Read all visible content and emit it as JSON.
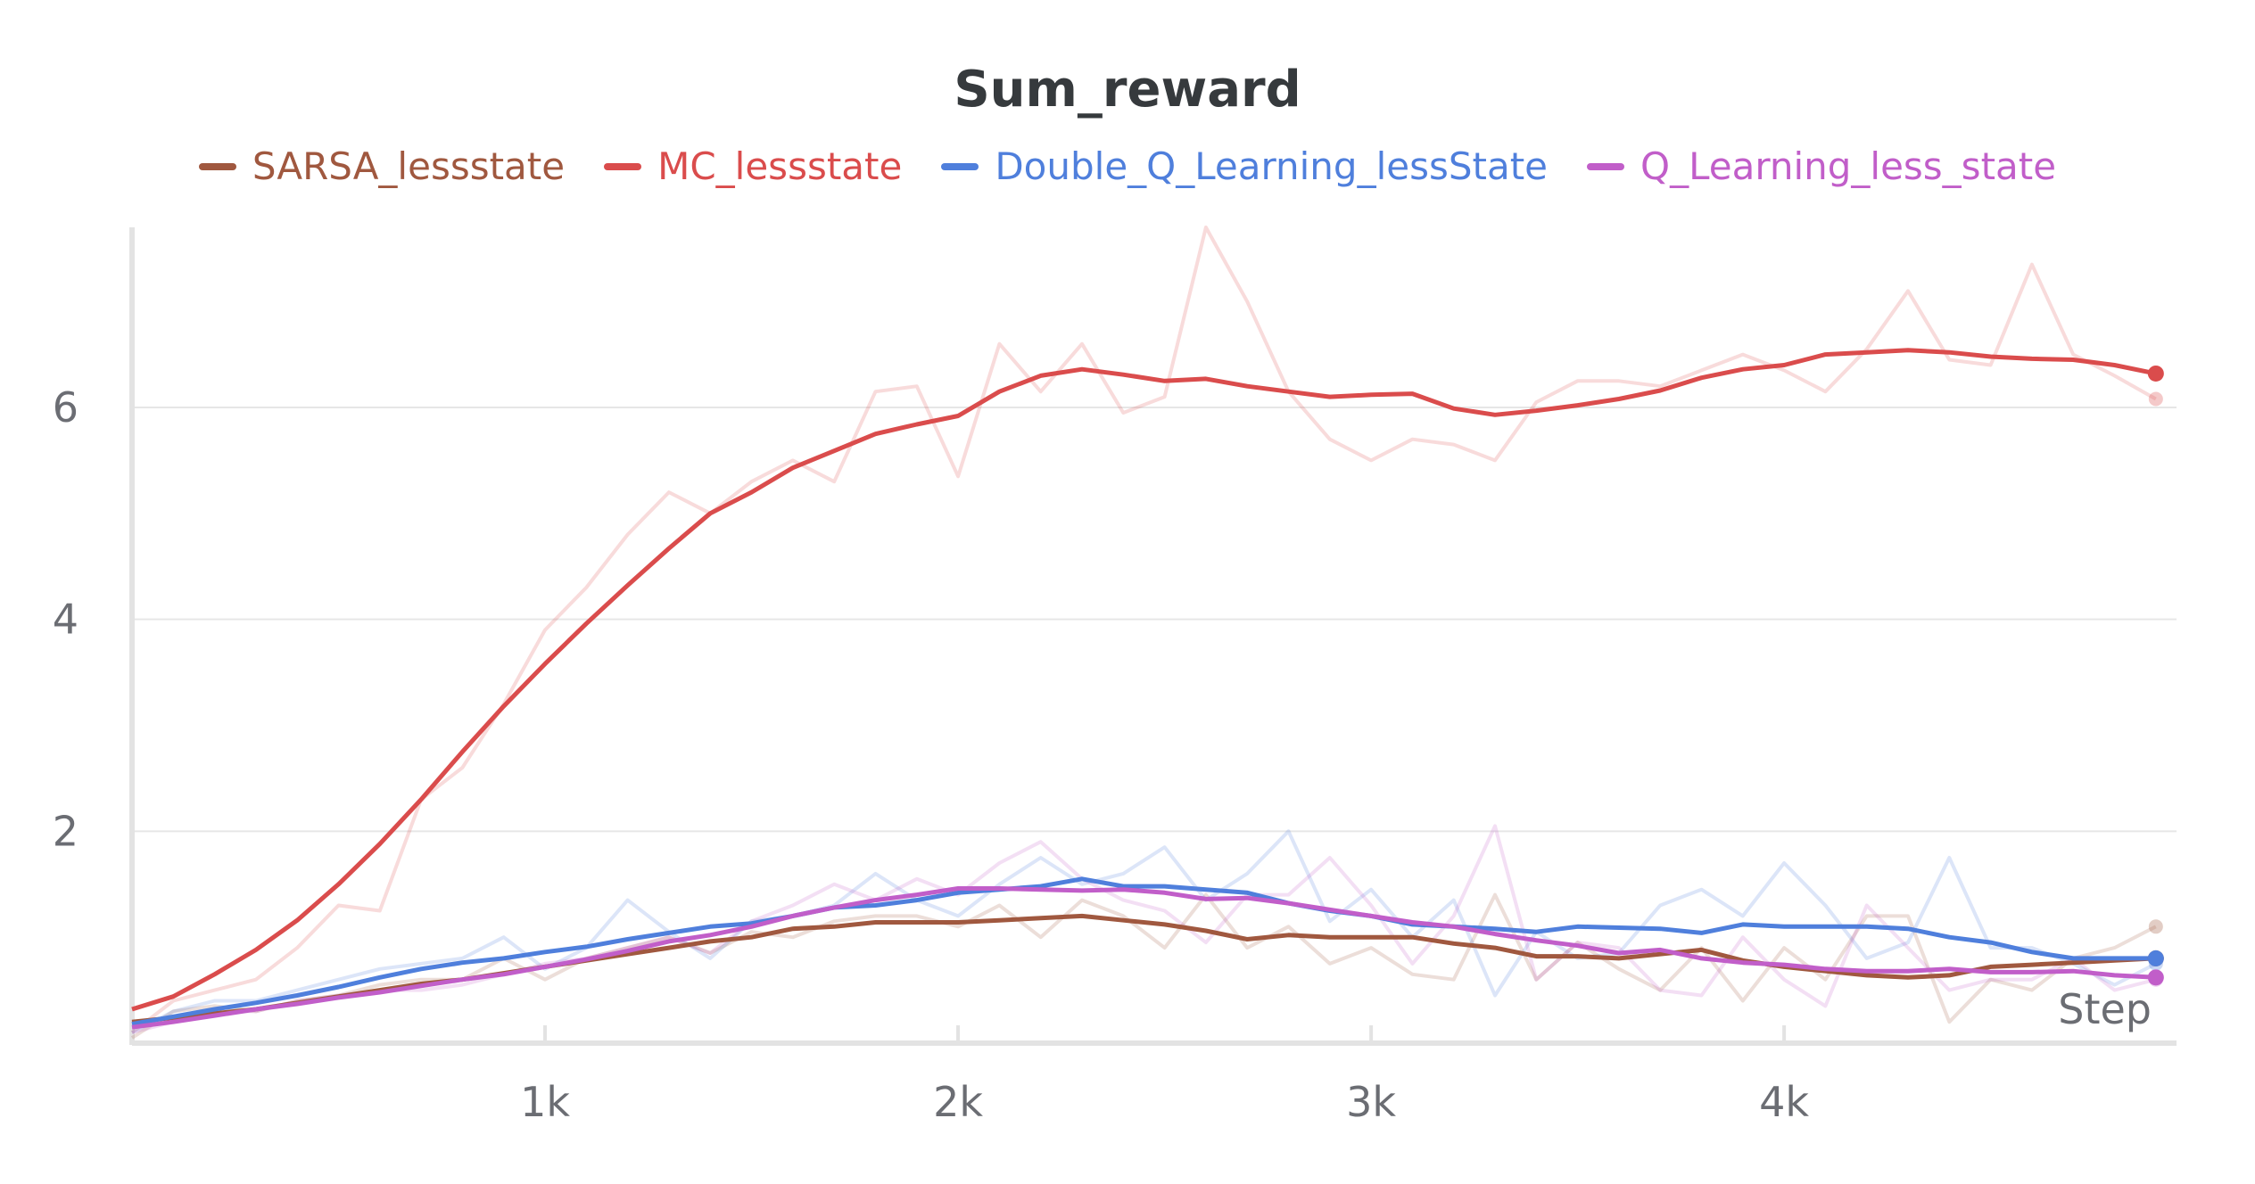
{
  "chart_data": {
    "type": "line",
    "title": "Sum_reward",
    "xlabel": "Step",
    "ylabel": "",
    "xlim": [
      0,
      4950
    ],
    "ylim": [
      0,
      7.7
    ],
    "xticks": [
      {
        "value": 1000,
        "label": "1k"
      },
      {
        "value": 2000,
        "label": "2k"
      },
      {
        "value": 3000,
        "label": "3k"
      },
      {
        "value": 4000,
        "label": "4k"
      }
    ],
    "yticks": [
      {
        "value": 2,
        "label": "2"
      },
      {
        "value": 4,
        "label": "4"
      },
      {
        "value": 6,
        "label": "6"
      }
    ],
    "grid": "horizontal",
    "legend_position": "top-center",
    "x": [
      0,
      100,
      200,
      300,
      400,
      500,
      600,
      700,
      800,
      900,
      1000,
      1100,
      1200,
      1300,
      1400,
      1500,
      1600,
      1700,
      1800,
      1900,
      2000,
      2100,
      2200,
      2300,
      2400,
      2500,
      2600,
      2700,
      2800,
      2900,
      3000,
      3100,
      3200,
      3300,
      3400,
      3500,
      3600,
      3700,
      3800,
      3900,
      4000,
      4100,
      4200,
      4300,
      4400,
      4500,
      4600,
      4700,
      4800,
      4900
    ],
    "series": [
      {
        "name": "SARSA_lessstate",
        "color": "#a0583f",
        "smoothed": [
          0.2,
          0.24,
          0.28,
          0.32,
          0.38,
          0.44,
          0.5,
          0.56,
          0.6,
          0.66,
          0.72,
          0.78,
          0.84,
          0.9,
          0.96,
          1.0,
          1.08,
          1.1,
          1.14,
          1.14,
          1.14,
          1.16,
          1.18,
          1.2,
          1.16,
          1.12,
          1.06,
          0.98,
          1.02,
          1.0,
          1.0,
          1.0,
          0.94,
          0.9,
          0.82,
          0.82,
          0.8,
          0.84,
          0.88,
          0.78,
          0.72,
          0.68,
          0.64,
          0.62,
          0.64,
          0.72,
          0.74,
          0.76,
          0.78,
          0.8
        ],
        "raw": [
          0.05,
          0.3,
          0.35,
          0.3,
          0.4,
          0.45,
          0.55,
          0.6,
          0.6,
          0.8,
          0.6,
          0.8,
          0.9,
          1.0,
          0.85,
          1.05,
          1.0,
          1.15,
          1.2,
          1.2,
          1.1,
          1.3,
          1.0,
          1.35,
          1.2,
          0.9,
          1.4,
          0.9,
          1.1,
          0.75,
          0.9,
          0.65,
          0.6,
          1.4,
          0.6,
          0.95,
          0.7,
          0.5,
          0.9,
          0.4,
          0.9,
          0.6,
          1.2,
          1.2,
          0.2,
          0.6,
          0.5,
          0.8,
          0.9,
          1.1
        ]
      },
      {
        "name": "MC_lessstate",
        "color": "#da4c4c",
        "smoothed": [
          0.32,
          0.44,
          0.65,
          0.88,
          1.16,
          1.5,
          1.88,
          2.3,
          2.75,
          3.18,
          3.58,
          3.96,
          4.32,
          4.67,
          5.0,
          5.2,
          5.43,
          5.59,
          5.75,
          5.84,
          5.92,
          6.15,
          6.3,
          6.36,
          6.31,
          6.25,
          6.27,
          6.2,
          6.15,
          6.1,
          6.12,
          6.13,
          5.99,
          5.93,
          5.97,
          6.02,
          6.08,
          6.16,
          6.28,
          6.36,
          6.4,
          6.5,
          6.52,
          6.54,
          6.52,
          6.48,
          6.46,
          6.45,
          6.4,
          6.32
        ],
        "raw": [
          0.1,
          0.4,
          0.5,
          0.6,
          0.9,
          1.3,
          1.25,
          2.3,
          2.6,
          3.2,
          3.9,
          4.3,
          4.8,
          5.2,
          5.0,
          5.3,
          5.5,
          5.3,
          6.15,
          6.2,
          5.35,
          6.6,
          6.15,
          6.6,
          5.95,
          6.1,
          7.7,
          7.0,
          6.15,
          5.7,
          5.5,
          5.7,
          5.65,
          5.5,
          6.05,
          6.25,
          6.25,
          6.2,
          6.35,
          6.5,
          6.35,
          6.15,
          6.55,
          7.1,
          6.45,
          6.4,
          7.35,
          6.5,
          6.3,
          6.08
        ]
      },
      {
        "name": "Double_Q_Learning_lessState",
        "color": "#4f7fdc",
        "smoothed": [
          0.18,
          0.25,
          0.32,
          0.38,
          0.45,
          0.53,
          0.62,
          0.7,
          0.76,
          0.8,
          0.86,
          0.91,
          0.98,
          1.04,
          1.1,
          1.13,
          1.2,
          1.28,
          1.3,
          1.35,
          1.42,
          1.45,
          1.48,
          1.55,
          1.48,
          1.48,
          1.45,
          1.42,
          1.32,
          1.25,
          1.2,
          1.12,
          1.1,
          1.08,
          1.05,
          1.1,
          1.09,
          1.08,
          1.04,
          1.12,
          1.1,
          1.1,
          1.1,
          1.08,
          1.0,
          0.95,
          0.86,
          0.8,
          0.8,
          0.8
        ],
        "raw": [
          0.1,
          0.3,
          0.4,
          0.4,
          0.5,
          0.6,
          0.7,
          0.75,
          0.8,
          1.0,
          0.7,
          0.9,
          1.35,
          1.05,
          0.8,
          1.15,
          1.2,
          1.3,
          1.6,
          1.35,
          1.2,
          1.5,
          1.75,
          1.5,
          1.6,
          1.85,
          1.35,
          1.6,
          2.0,
          1.15,
          1.45,
          1.0,
          1.35,
          0.45,
          1.05,
          0.8,
          0.85,
          1.3,
          1.45,
          1.2,
          1.7,
          1.3,
          0.8,
          0.95,
          1.75,
          0.9,
          0.9,
          0.75,
          0.55,
          0.75
        ]
      },
      {
        "name": "Q_Learning_less_state",
        "color": "#c15ec9",
        "smoothed": [
          0.15,
          0.2,
          0.26,
          0.32,
          0.37,
          0.43,
          0.48,
          0.54,
          0.6,
          0.65,
          0.72,
          0.79,
          0.87,
          0.96,
          1.02,
          1.1,
          1.2,
          1.28,
          1.35,
          1.4,
          1.46,
          1.46,
          1.45,
          1.44,
          1.45,
          1.42,
          1.36,
          1.37,
          1.32,
          1.26,
          1.2,
          1.14,
          1.1,
          1.03,
          0.97,
          0.92,
          0.85,
          0.88,
          0.8,
          0.76,
          0.74,
          0.7,
          0.68,
          0.68,
          0.7,
          0.67,
          0.67,
          0.68,
          0.64,
          0.62
        ],
        "raw": [
          0.1,
          0.2,
          0.3,
          0.3,
          0.4,
          0.45,
          0.5,
          0.5,
          0.55,
          0.65,
          0.75,
          0.8,
          0.9,
          1.0,
          0.85,
          1.15,
          1.3,
          1.5,
          1.35,
          1.55,
          1.4,
          1.7,
          1.9,
          1.55,
          1.35,
          1.25,
          0.95,
          1.4,
          1.4,
          1.75,
          1.3,
          0.75,
          1.2,
          2.05,
          0.6,
          0.95,
          0.9,
          0.5,
          0.45,
          1.0,
          0.6,
          0.35,
          1.3,
          0.9,
          0.5,
          0.6,
          0.6,
          0.8,
          0.5,
          0.6
        ]
      }
    ]
  }
}
